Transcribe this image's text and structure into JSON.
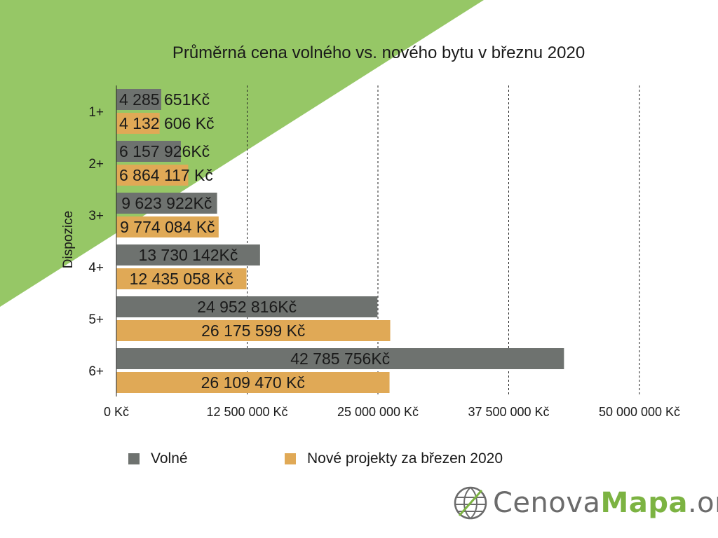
{
  "colors": {
    "background_green": "#96c766",
    "volne": "#6e726f",
    "nove": "#e0a956",
    "grid": "#222222",
    "logo_green": "#7cb342",
    "logo_gray": "#6b6b6b"
  },
  "chart_data": {
    "type": "bar",
    "orientation": "horizontal",
    "title": "Průměrná cena volného vs. nového bytu v březnu 2020",
    "ylabel": "Dispozice",
    "xlabel": "",
    "categories": [
      "1+",
      "2+",
      "3+",
      "4+",
      "5+",
      "6+"
    ],
    "xlim": [
      0,
      50000000
    ],
    "x_ticks": [
      0,
      12500000,
      25000000,
      37500000,
      50000000
    ],
    "x_tick_labels": [
      "0 Kč",
      "12 500 000 Kč",
      "25 000 000 Kč",
      "37 500 000 Kč",
      "50 000 000 Kč"
    ],
    "grid": "vertical dashed",
    "legend_position": "bottom",
    "series": [
      {
        "name": "Volné",
        "color": "#6e726f",
        "values": [
          4285651,
          6157926,
          9623922,
          13730142,
          24952816,
          42785756
        ],
        "labels": [
          "4 285 651Kč",
          "6 157 926Kč",
          "9 623 922Kč",
          "13 730 142Kč",
          "24 952 816Kč",
          "42 785 756Kč"
        ]
      },
      {
        "name": "Nové projekty za březen 2020",
        "color": "#e0a956",
        "values": [
          4132606,
          6864117,
          9774084,
          12435058,
          26175599,
          26109470
        ],
        "labels": [
          "4 132 606 Kč",
          "6 864 117 Kč",
          "9 774 084 Kč",
          "12 435 058 Kč",
          "26 175 599 Kč",
          "26 109 470 Kč"
        ]
      }
    ]
  },
  "logo": {
    "icon": "globe-icon",
    "part1": "Cenova",
    "part2": "Mapa",
    "part3": ".org"
  }
}
